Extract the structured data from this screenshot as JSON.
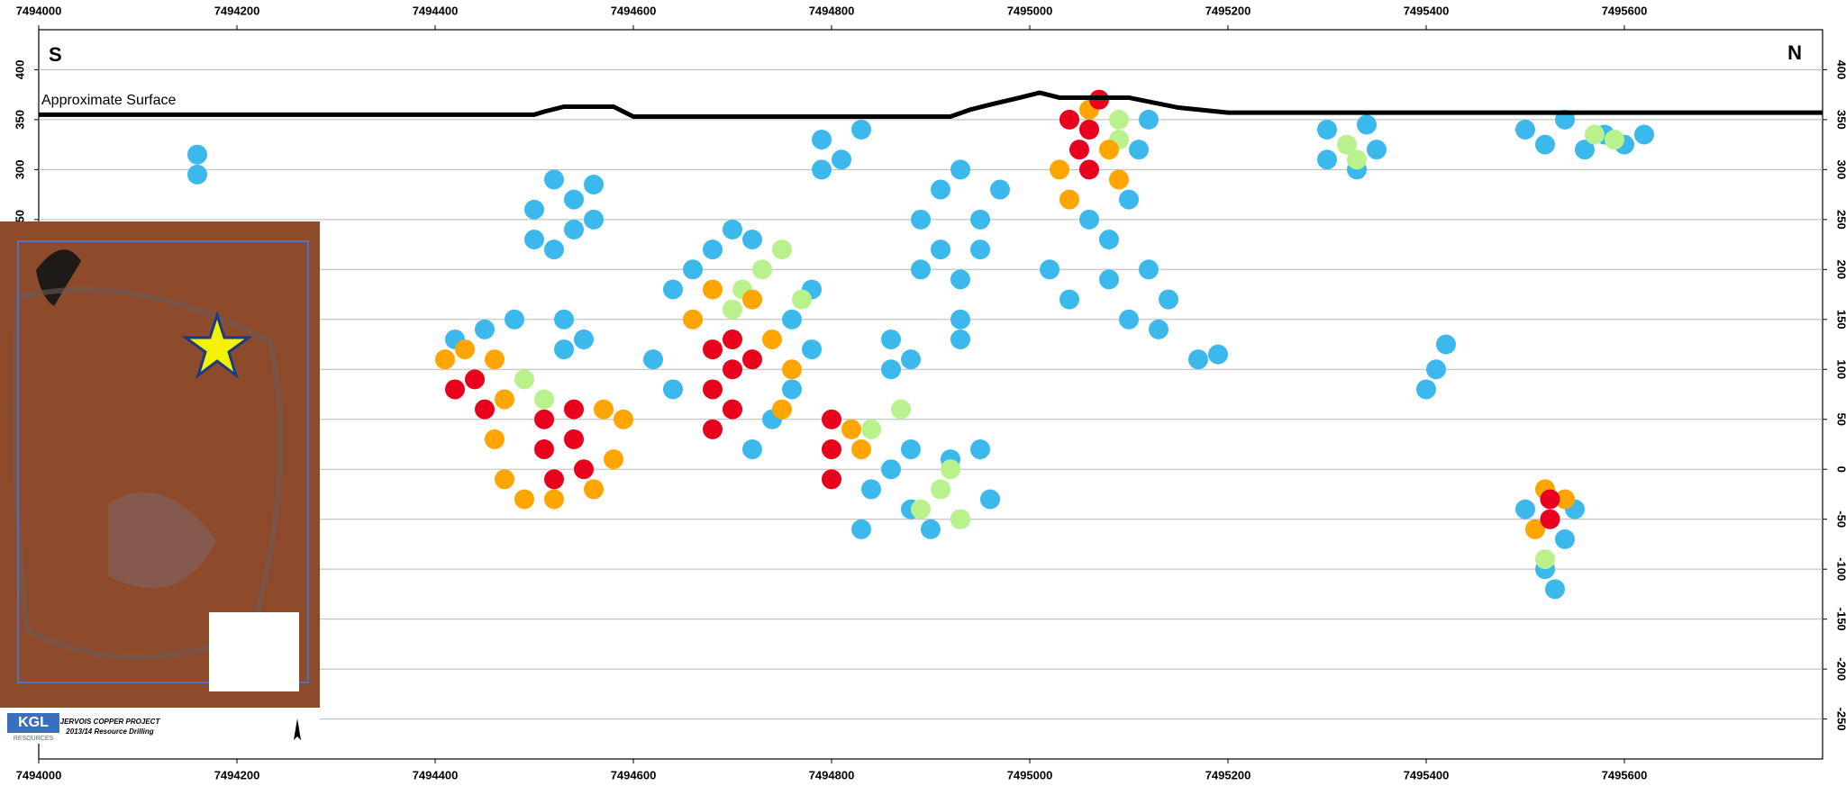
{
  "chart_data": {
    "type": "scatter",
    "xlim": [
      7494000,
      7495800
    ],
    "ylim": [
      -290,
      440
    ],
    "xticks": [
      7494000,
      7494200,
      7494400,
      7494600,
      7494800,
      7495000,
      7495200,
      7495400,
      7495600
    ],
    "yticks": [
      400,
      350,
      300,
      250,
      200,
      150,
      100,
      50,
      0,
      -50,
      -100,
      -150,
      -200,
      -250
    ],
    "grid": true,
    "south_label": "S",
    "north_label": "N",
    "surface": {
      "label": "Approximate Surface",
      "color": "#000000",
      "x": [
        7494000,
        7494500,
        7494510,
        7494530,
        7494580,
        7494600,
        7494920,
        7494940,
        7494960,
        7494990,
        7495010,
        7495030,
        7495100,
        7495150,
        7495200,
        7495800
      ],
      "values": [
        355,
        355,
        358,
        363,
        363,
        353,
        353,
        360,
        365,
        372,
        377,
        372,
        372,
        362,
        357,
        357
      ]
    },
    "series": [
      {
        "color": "#3cb9ec",
        "x": [
          7494160,
          7494160,
          7494500,
          7494500,
          7494520,
          7494540,
          7494540,
          7494560,
          7494520,
          7494560,
          7494530,
          7494530,
          7494550,
          7494620,
          7494640,
          7494640,
          7494660,
          7494680,
          7494700,
          7494720,
          7494700,
          7494740,
          7494760,
          7494780,
          7494760,
          7494780,
          7494720,
          7494790,
          7494790,
          7494810,
          7494830,
          7494860,
          7494860,
          7494880,
          7494890,
          7494890,
          7494910,
          7494910,
          7494930,
          7494930,
          7494950,
          7494950,
          7494970,
          7494930,
          7494930,
          7494830,
          7494840,
          7494860,
          7494880,
          7494880,
          7494900,
          7494920,
          7494930,
          7494960,
          7494950,
          7495020,
          7495040,
          7495080,
          7495080,
          7495100,
          7495100,
          7495110,
          7495120,
          7495120,
          7495140,
          7495130,
          7495060,
          7495170,
          7495190,
          7495300,
          7495300,
          7495330,
          7495350,
          7495340,
          7495400,
          7495410,
          7495420,
          7495500,
          7495520,
          7495540,
          7495560,
          7495580,
          7495600,
          7495620,
          7495500,
          7495520,
          7495530,
          7495540,
          7495550,
          7494450,
          7494480,
          7494420
        ],
        "values": [
          295,
          315,
          230,
          260,
          290,
          240,
          270,
          250,
          220,
          285,
          120,
          150,
          130,
          110,
          80,
          180,
          200,
          220,
          240,
          230,
          60,
          50,
          80,
          120,
          150,
          180,
          20,
          300,
          330,
          310,
          340,
          100,
          130,
          110,
          200,
          250,
          280,
          220,
          300,
          190,
          250,
          220,
          280,
          130,
          150,
          -60,
          -20,
          0,
          20,
          -40,
          -60,
          10,
          -50,
          -30,
          20,
          200,
          170,
          190,
          230,
          150,
          270,
          320,
          200,
          350,
          170,
          140,
          250,
          110,
          115,
          310,
          340,
          300,
          320,
          345,
          80,
          100,
          125,
          340,
          325,
          350,
          320,
          335,
          325,
          335,
          -40,
          -100,
          -120,
          -70,
          -40,
          140,
          150,
          130
        ]
      },
      {
        "color": "#b9f28c",
        "x": [
          7494490,
          7494510,
          7494730,
          7494750,
          7494770,
          7494710,
          7494890,
          7494910,
          7494930,
          7494920,
          7495090,
          7495090,
          7495320,
          7495330,
          7495570,
          7495590,
          7495520,
          7494870,
          7494840,
          7494700
        ],
        "values": [
          90,
          70,
          200,
          220,
          170,
          180,
          -40,
          -20,
          -50,
          0,
          330,
          350,
          325,
          310,
          335,
          330,
          -90,
          60,
          40,
          160
        ]
      },
      {
        "color": "#ffa500",
        "x": [
          7494410,
          7494430,
          7494460,
          7494470,
          7494460,
          7494470,
          7494490,
          7494520,
          7494560,
          7494580,
          7494590,
          7494570,
          7494720,
          7494740,
          7494760,
          7494750,
          7494660,
          7494680,
          7494820,
          7494830,
          7495030,
          7495040,
          7495080,
          7495090,
          7495060,
          7495510,
          7495540,
          7495520
        ],
        "values": [
          110,
          120,
          110,
          70,
          30,
          -10,
          -30,
          -30,
          -20,
          10,
          50,
          60,
          170,
          130,
          100,
          60,
          150,
          180,
          40,
          20,
          300,
          270,
          320,
          290,
          360,
          -60,
          -30,
          -20
        ]
      },
      {
        "color": "#e8001c",
        "x": [
          7494420,
          7494440,
          7494450,
          7494510,
          7494510,
          7494520,
          7494540,
          7494540,
          7494550,
          7494680,
          7494680,
          7494680,
          7494700,
          7494700,
          7494700,
          7494720,
          7494800,
          7494800,
          7494800,
          7495040,
          7495050,
          7495060,
          7495060,
          7495070,
          7495525,
          7495525
        ],
        "values": [
          80,
          90,
          60,
          50,
          20,
          -10,
          60,
          30,
          0,
          120,
          80,
          40,
          130,
          100,
          60,
          110,
          50,
          20,
          -10,
          350,
          320,
          300,
          340,
          370,
          -50,
          -30
        ]
      }
    ]
  },
  "inset": {
    "logo": "KGL",
    "logo_sub": "RESOURCES",
    "title": "JERVOIS COPPER PROJECT",
    "subtitle": "2013/14 Resource Drilling"
  }
}
